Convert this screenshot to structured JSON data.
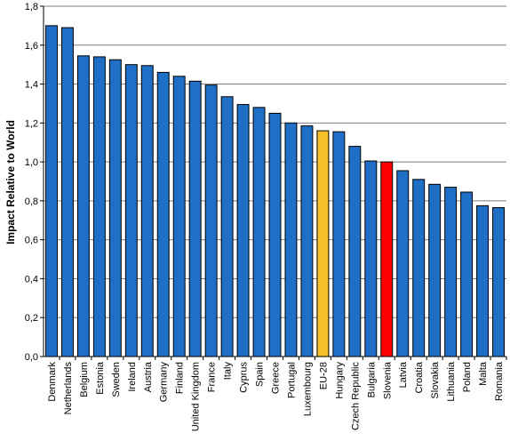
{
  "chart_data": {
    "type": "bar",
    "title": "",
    "xlabel": "",
    "ylabel": "Impact Relative to World",
    "ylim": [
      0,
      1.8
    ],
    "ytick_labels": [
      "0,0",
      "0,2",
      "0,4",
      "0,6",
      "0,8",
      "1,0",
      "1,2",
      "1,4",
      "1,6",
      "1,8"
    ],
    "grid": "horizontal",
    "legend": "none",
    "categories": [
      "Denmark",
      "Netherlands",
      "Belgium",
      "Estonia",
      "Sweden",
      "Ireland",
      "Austria",
      "Germany",
      "Finland",
      "United Kingdom",
      "France",
      "Italy",
      "Cyprus",
      "Spain",
      "Greece",
      "Portugal",
      "Luxembourg",
      "EU-28",
      "Hungary",
      "Czech Republic",
      "Bulgaria",
      "Slovenia",
      "Latvia",
      "Croatia",
      "Slovakia",
      "Lithuania",
      "Poland",
      "Malta",
      "Romania"
    ],
    "values": [
      1.7,
      1.69,
      1.545,
      1.54,
      1.525,
      1.5,
      1.495,
      1.46,
      1.44,
      1.415,
      1.395,
      1.335,
      1.295,
      1.28,
      1.25,
      1.2,
      1.185,
      1.16,
      1.155,
      1.08,
      1.005,
      1.0,
      0.955,
      0.91,
      0.885,
      0.87,
      0.845,
      0.775,
      0.765
    ],
    "colors": {
      "default": "#1f6fc6",
      "EU-28": "#f5c02a",
      "Slovenia": "#ff0000",
      "outline": "#000000",
      "grid": "#7f7f7f",
      "axis": "#000000"
    }
  }
}
